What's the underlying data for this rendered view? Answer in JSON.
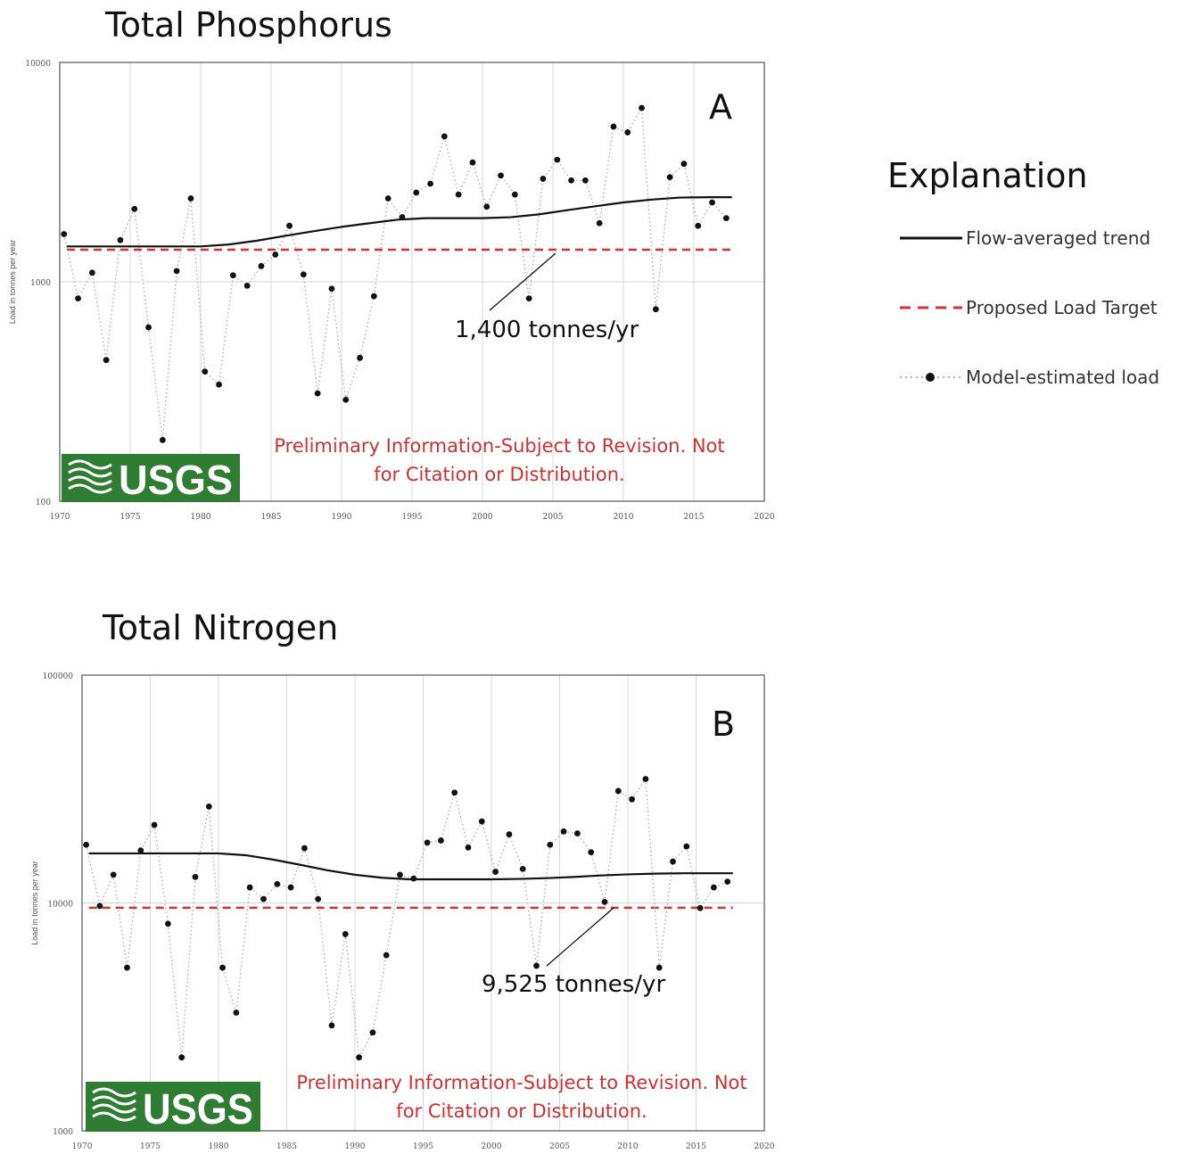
{
  "legend": {
    "title": "Explanation",
    "items": [
      {
        "label": "Flow-averaged trend",
        "style": "solid",
        "color": "#111111"
      },
      {
        "label": "Proposed Load Target",
        "style": "dashed",
        "color": "#d93030"
      },
      {
        "label": "Model-estimated load",
        "style": "dotted-marker",
        "color": "#111111"
      }
    ]
  },
  "chart_data": [
    {
      "type": "scatter",
      "panel": "A",
      "title": "Total Phosphorus",
      "ylabel": "Load in tonnes per year",
      "xlim": [
        1970,
        2020
      ],
      "ylim": [
        100,
        10000
      ],
      "yscale": "log",
      "xticks": [
        "1970",
        "1975",
        "1980",
        "1985",
        "1990",
        "1995",
        "2000",
        "2005",
        "2010",
        "2015",
        "2020"
      ],
      "yticks": [
        "100",
        "1000",
        "10000"
      ],
      "grid": true,
      "target": {
        "value": 1400,
        "label": "1,400 tonnes/yr"
      },
      "watermark": {
        "logo": "USGS",
        "notice": [
          "Preliminary Information-Subject to Revision. Not",
          "for Citation or Distribution."
        ]
      },
      "series": [
        {
          "name": "Model-estimated load",
          "x": [
            1970.3,
            1971.3,
            1972.3,
            1973.3,
            1974.3,
            1975.3,
            1976.3,
            1977.3,
            1978.3,
            1979.3,
            1980.3,
            1981.3,
            1982.3,
            1983.3,
            1984.3,
            1985.3,
            1986.3,
            1987.3,
            1988.3,
            1989.3,
            1990.3,
            1991.3,
            1992.3,
            1993.3,
            1994.3,
            1995.3,
            1996.3,
            1997.3,
            1998.3,
            1999.3,
            2000.3,
            2001.3,
            2002.3,
            2003.3,
            2004.3,
            2005.3,
            2006.3,
            2007.3,
            2008.3,
            2009.3,
            2010.3,
            2011.3,
            2012.3,
            2013.3,
            2014.3,
            2015.3,
            2016.3,
            2017.3
          ],
          "y": [
            1650,
            840,
            1100,
            440,
            1550,
            2150,
            620,
            190,
            1120,
            2400,
            390,
            340,
            1070,
            960,
            1180,
            1330,
            1800,
            1080,
            310,
            930,
            290,
            450,
            860,
            2400,
            1970,
            2550,
            2800,
            4600,
            2500,
            3500,
            2200,
            3050,
            2500,
            840,
            2950,
            3600,
            2900,
            2900,
            1850,
            5100,
            4800,
            6200,
            750,
            3000,
            3450,
            1800,
            2300,
            1950
          ]
        },
        {
          "name": "Flow-averaged trend",
          "x": [
            1970.5,
            1980,
            1982,
            1984,
            1986,
            1988,
            1990,
            1992,
            1994,
            1996,
            1998,
            2000,
            2002,
            2004,
            2006,
            2008,
            2010,
            2012,
            2014,
            2016,
            2017.7
          ],
          "y": [
            1450,
            1450,
            1480,
            1540,
            1620,
            1700,
            1780,
            1850,
            1920,
            1950,
            1950,
            1950,
            1970,
            2030,
            2120,
            2210,
            2300,
            2370,
            2420,
            2430,
            2430
          ]
        }
      ]
    },
    {
      "type": "scatter",
      "panel": "B",
      "title": "Total Nitrogen",
      "ylabel": "Load in tonnes per year",
      "xlim": [
        1970,
        2020
      ],
      "ylim": [
        1000,
        100000
      ],
      "yscale": "log",
      "xticks": [
        "1970",
        "1975",
        "1980",
        "1985",
        "1990",
        "1995",
        "2000",
        "2005",
        "2010",
        "2015",
        "2020"
      ],
      "yticks": [
        "1000",
        "10000",
        "100000"
      ],
      "grid": true,
      "target": {
        "value": 9525,
        "label": "9,525 tonnes/yr"
      },
      "watermark": {
        "logo": "USGS",
        "notice": [
          "Preliminary Information-Subject to Revision. Not",
          "for Citation or Distribution."
        ]
      },
      "series": [
        {
          "name": "Model-estimated load",
          "x": [
            1970.3,
            1971.3,
            1972.3,
            1973.3,
            1974.3,
            1975.3,
            1976.3,
            1977.3,
            1978.3,
            1979.3,
            1980.3,
            1981.3,
            1982.3,
            1983.3,
            1984.3,
            1985.3,
            1986.3,
            1987.3,
            1988.3,
            1989.3,
            1990.3,
            1991.3,
            1992.3,
            1993.3,
            1994.3,
            1995.3,
            1996.3,
            1997.3,
            1998.3,
            1999.3,
            2000.3,
            2001.3,
            2002.3,
            2003.3,
            2004.3,
            2005.3,
            2006.3,
            2007.3,
            2008.3,
            2009.3,
            2010.3,
            2011.3,
            2012.3,
            2013.3,
            2014.3,
            2015.3,
            2016.3,
            2017.3
          ],
          "y": [
            18000,
            9700,
            13300,
            5200,
            17000,
            22000,
            8100,
            2100,
            13000,
            26500,
            5200,
            3300,
            11700,
            10400,
            12100,
            11700,
            17400,
            10400,
            2900,
            7300,
            2100,
            2700,
            5900,
            13300,
            12800,
            18400,
            18800,
            30500,
            17500,
            22800,
            13700,
            20000,
            14100,
            5300,
            18000,
            20600,
            20200,
            16700,
            10100,
            31000,
            28500,
            35000,
            5200,
            15200,
            17700,
            9500,
            11700,
            12400
          ]
        },
        {
          "name": "Flow-averaged trend",
          "x": [
            1970.5,
            1980,
            1982,
            1984,
            1986,
            1988,
            1990,
            1992,
            1994,
            1996,
            1998,
            2000,
            2002,
            2004,
            2006,
            2008,
            2010,
            2012,
            2014,
            2016,
            2017.7
          ],
          "y": [
            16500,
            16500,
            16200,
            15500,
            14700,
            13900,
            13300,
            12900,
            12700,
            12700,
            12700,
            12700,
            12750,
            12850,
            13000,
            13200,
            13350,
            13450,
            13500,
            13500,
            13500
          ]
        }
      ]
    }
  ]
}
